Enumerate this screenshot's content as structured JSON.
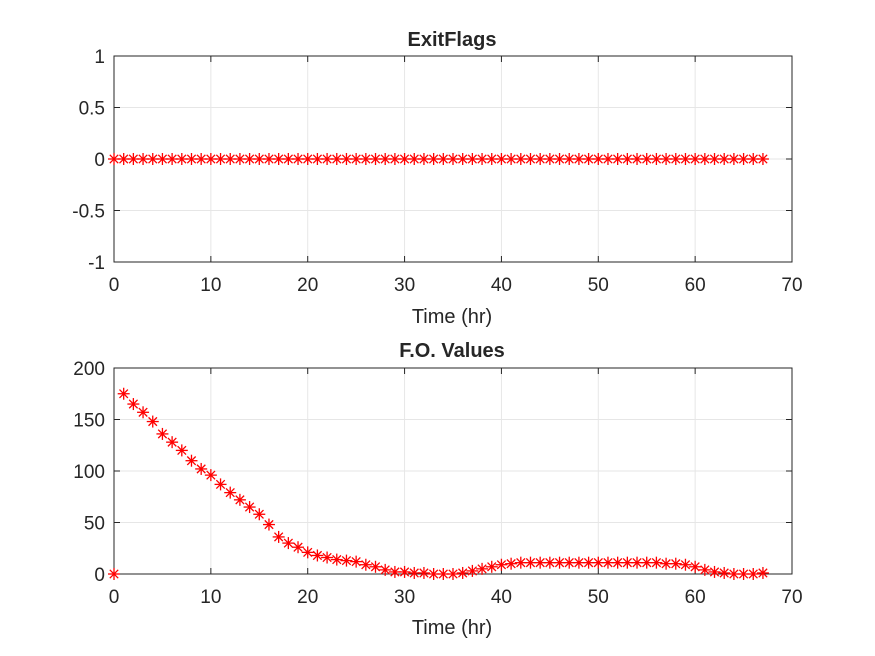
{
  "chart_data": [
    {
      "type": "scatter",
      "title": "ExitFlags",
      "xlabel": "Time (hr)",
      "ylabel": "",
      "xlim": [
        0,
        70
      ],
      "ylim": [
        -1,
        1
      ],
      "xticks": [
        "0",
        "10",
        "20",
        "30",
        "40",
        "50",
        "60",
        "70"
      ],
      "yticks": [
        "1",
        "0.5",
        "0",
        "-0.5",
        "-1"
      ],
      "grid": true,
      "marker": "asterisk",
      "color": "#ff0000",
      "series": [
        {
          "x": [
            0,
            1,
            2,
            3,
            4,
            5,
            6,
            7,
            8,
            9,
            10,
            11,
            12,
            13,
            14,
            15,
            16,
            17,
            18,
            19,
            20,
            21,
            22,
            23,
            24,
            25,
            26,
            27,
            28,
            29,
            30,
            31,
            32,
            33,
            34,
            35,
            36,
            37,
            38,
            39,
            40,
            41,
            42,
            43,
            44,
            45,
            46,
            47,
            48,
            49,
            50,
            51,
            52,
            53,
            54,
            55,
            56,
            57,
            58,
            59,
            60,
            61,
            62,
            63,
            64,
            65,
            66,
            67
          ],
          "y": [
            0,
            0,
            0,
            0,
            0,
            0,
            0,
            0,
            0,
            0,
            0,
            0,
            0,
            0,
            0,
            0,
            0,
            0,
            0,
            0,
            0,
            0,
            0,
            0,
            0,
            0,
            0,
            0,
            0,
            0,
            0,
            0,
            0,
            0,
            0,
            0,
            0,
            0,
            0,
            0,
            0,
            0,
            0,
            0,
            0,
            0,
            0,
            0,
            0,
            0,
            0,
            0,
            0,
            0,
            0,
            0,
            0,
            0,
            0,
            0,
            0,
            0,
            0,
            0,
            0,
            0,
            0,
            0
          ]
        }
      ]
    },
    {
      "type": "scatter",
      "title": "F.O. Values",
      "xlabel": "Time (hr)",
      "ylabel": "",
      "xlim": [
        0,
        70
      ],
      "ylim": [
        0,
        200
      ],
      "xticks": [
        "0",
        "10",
        "20",
        "30",
        "40",
        "50",
        "60",
        "70"
      ],
      "yticks": [
        "200",
        "150",
        "100",
        "50",
        "0"
      ],
      "grid": true,
      "marker": "asterisk",
      "color": "#ff0000",
      "series": [
        {
          "x": [
            0,
            1,
            2,
            3,
            4,
            5,
            6,
            7,
            8,
            9,
            10,
            11,
            12,
            13,
            14,
            15,
            16,
            17,
            18,
            19,
            20,
            21,
            22,
            23,
            24,
            25,
            26,
            27,
            28,
            29,
            30,
            31,
            32,
            33,
            34,
            35,
            36,
            37,
            38,
            39,
            40,
            41,
            42,
            43,
            44,
            45,
            46,
            47,
            48,
            49,
            50,
            51,
            52,
            53,
            54,
            55,
            56,
            57,
            58,
            59,
            60,
            61,
            62,
            63,
            64,
            65,
            66,
            67
          ],
          "y": [
            0,
            175,
            165,
            157,
            148,
            136,
            128,
            120,
            110,
            102,
            96,
            87,
            79,
            72,
            65,
            58,
            48,
            36,
            30,
            26,
            21,
            18,
            16,
            14,
            13,
            12,
            9,
            7,
            4,
            2,
            2,
            1,
            1,
            0,
            0,
            0,
            1,
            3,
            5,
            7,
            9,
            10,
            11,
            11,
            11,
            11,
            11,
            11,
            11,
            11,
            11,
            11,
            11,
            11,
            11,
            11,
            11,
            10,
            10,
            9,
            7,
            4,
            2,
            1,
            0,
            0,
            0,
            1
          ]
        }
      ]
    }
  ]
}
